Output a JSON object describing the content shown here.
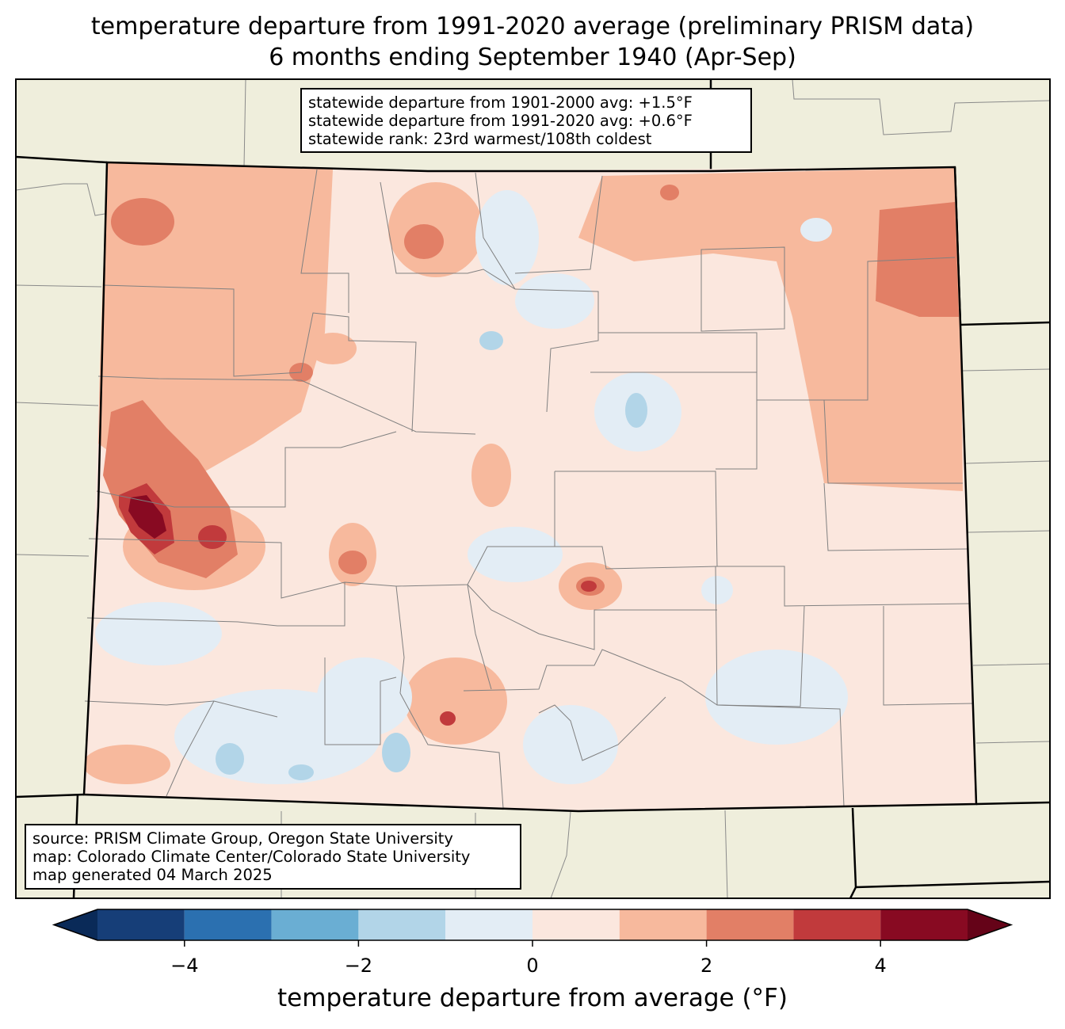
{
  "title": {
    "line1": "temperature departure from 1991-2020 average (preliminary PRISM data)",
    "line2": "6 months ending September 1940 (Apr-Sep)"
  },
  "stats": {
    "line1": "statewide departure from 1901-2000 avg: +1.5°F",
    "line2": "statewide departure from 1991-2020 avg: +0.6°F",
    "line3": "statewide rank: 23rd warmest/108th coldest"
  },
  "source": {
    "line1": "source: PRISM Climate Group, Oregon State University",
    "line2": "map: Colorado Climate Center/Colorado State University",
    "line3": "map generated 04 March 2025"
  },
  "colorbar": {
    "label": "temperature departure from average (°F)",
    "levels": [
      -5,
      -4,
      -3,
      -2,
      -1,
      0,
      1,
      2,
      3,
      4,
      5
    ],
    "colors": [
      "#163e78",
      "#2b70b0",
      "#6aaed3",
      "#b2d5e8",
      "#e3edf5",
      "#fbe7de",
      "#f7b99d",
      "#e27f66",
      "#c13a3c",
      "#880a22"
    ],
    "under_color": "#0a2a58",
    "over_color": "#650318",
    "ticks": [
      -4,
      -2,
      0,
      2,
      4
    ],
    "tick_labels": [
      "−4",
      "−2",
      "0",
      "2",
      "4"
    ]
  },
  "map_colors": {
    "land": "#efeedc",
    "state_border": "#000000",
    "county_border": "#808080"
  }
}
